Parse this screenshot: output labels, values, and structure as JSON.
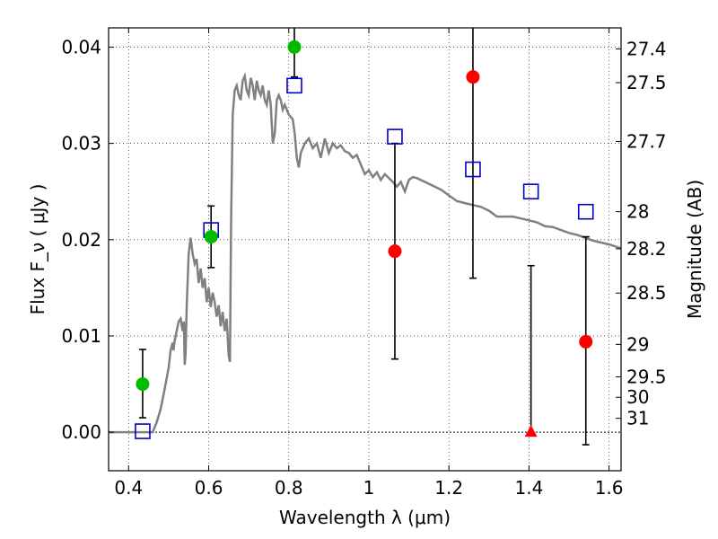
{
  "chart_data": {
    "type": "scatter",
    "xlabel": "Wavelength  λ (μm)",
    "ylabel": "Flux  F_ν  ( μJy )",
    "y2label": "Magnitude (AB)",
    "xlim": [
      0.35,
      1.63
    ],
    "ylim": [
      -0.004,
      0.042
    ],
    "grid": true,
    "x_ticks": [
      {
        "value": 0.4,
        "label": "0.4"
      },
      {
        "value": 0.6,
        "label": "0.6"
      },
      {
        "value": 0.8,
        "label": "0.8"
      },
      {
        "value": 1.0,
        "label": "1"
      },
      {
        "value": 1.2,
        "label": "1.2"
      },
      {
        "value": 1.4,
        "label": "1.4"
      },
      {
        "value": 1.6,
        "label": "1.6"
      }
    ],
    "y_ticks": [
      {
        "value": 0.0,
        "label": "0.00"
      },
      {
        "value": 0.01,
        "label": "0.01"
      },
      {
        "value": 0.02,
        "label": "0.02"
      },
      {
        "value": 0.03,
        "label": "0.03"
      },
      {
        "value": 0.04,
        "label": "0.04"
      }
    ],
    "magnitude_ticks": [
      {
        "mag": 27.4,
        "label": "27.4"
      },
      {
        "mag": 27.5,
        "label": "27.5"
      },
      {
        "mag": 27.7,
        "label": "27.7"
      },
      {
        "mag": 28.0,
        "label": "28"
      },
      {
        "mag": 28.2,
        "label": "28.2"
      },
      {
        "mag": 28.5,
        "label": "28.5"
      },
      {
        "mag": 29.0,
        "label": "29"
      },
      {
        "mag": 29.5,
        "label": "29.5"
      },
      {
        "mag": 30.0,
        "label": "30"
      },
      {
        "mag": 31.0,
        "label": "31"
      }
    ],
    "colors": {
      "detection": "#00bb00",
      "upper_limit": "#ff0000",
      "model": "#0000cc",
      "spectrum": "#808080",
      "errorbar": "#000000"
    },
    "detections": [
      {
        "x": 0.435,
        "y": 0.005,
        "err_low": 0.0035,
        "err_high": 0.0036
      },
      {
        "x": 0.606,
        "y": 0.0203,
        "err_low": 0.0032,
        "err_high": 0.0032
      },
      {
        "x": 0.814,
        "y": 0.04,
        "err_low": 0.0031,
        "err_high": 0.0035
      }
    ],
    "low_significance": [
      {
        "x": 1.065,
        "y": 0.0188,
        "err_low": 0.0112,
        "err_high": 0.0112
      },
      {
        "x": 1.26,
        "y": 0.0369,
        "err_low": 0.0209,
        "err_high": 0.008
      },
      {
        "x": 1.542,
        "y": 0.0094,
        "err_low": 0.0107,
        "err_high": 0.0109
      }
    ],
    "nondetections": [
      {
        "x": 1.405,
        "y": 0.0,
        "err_low": 0.0,
        "err_high": 0.0173
      }
    ],
    "model_points": [
      {
        "x": 0.435,
        "y": 0.0001
      },
      {
        "x": 0.606,
        "y": 0.021
      },
      {
        "x": 0.814,
        "y": 0.036
      },
      {
        "x": 1.065,
        "y": 0.0307
      },
      {
        "x": 1.26,
        "y": 0.0273
      },
      {
        "x": 1.405,
        "y": 0.025
      },
      {
        "x": 1.542,
        "y": 0.0229
      }
    ],
    "spectrum": [
      [
        0.35,
        0.0
      ],
      [
        0.46,
        0.0
      ],
      [
        0.47,
        0.001
      ],
      [
        0.48,
        0.0024
      ],
      [
        0.49,
        0.0045
      ],
      [
        0.5,
        0.0067
      ],
      [
        0.505,
        0.0085
      ],
      [
        0.51,
        0.0093
      ],
      [
        0.512,
        0.0085
      ],
      [
        0.515,
        0.0095
      ],
      [
        0.52,
        0.0105
      ],
      [
        0.525,
        0.0115
      ],
      [
        0.53,
        0.0118
      ],
      [
        0.535,
        0.0105
      ],
      [
        0.538,
        0.0115
      ],
      [
        0.54,
        0.007
      ],
      [
        0.542,
        0.008
      ],
      [
        0.545,
        0.013
      ],
      [
        0.55,
        0.0185
      ],
      [
        0.555,
        0.0202
      ],
      [
        0.56,
        0.0185
      ],
      [
        0.565,
        0.0175
      ],
      [
        0.57,
        0.018
      ],
      [
        0.575,
        0.0155
      ],
      [
        0.58,
        0.017
      ],
      [
        0.585,
        0.015
      ],
      [
        0.59,
        0.016
      ],
      [
        0.595,
        0.0135
      ],
      [
        0.6,
        0.015
      ],
      [
        0.605,
        0.013
      ],
      [
        0.61,
        0.0145
      ],
      [
        0.615,
        0.0135
      ],
      [
        0.62,
        0.012
      ],
      [
        0.625,
        0.0132
      ],
      [
        0.63,
        0.011
      ],
      [
        0.635,
        0.0125
      ],
      [
        0.64,
        0.0105
      ],
      [
        0.645,
        0.0118
      ],
      [
        0.65,
        0.008
      ],
      [
        0.653,
        0.0073
      ],
      [
        0.656,
        0.022
      ],
      [
        0.66,
        0.033
      ],
      [
        0.665,
        0.0355
      ],
      [
        0.67,
        0.036
      ],
      [
        0.675,
        0.035
      ],
      [
        0.68,
        0.0345
      ],
      [
        0.685,
        0.0365
      ],
      [
        0.69,
        0.037
      ],
      [
        0.695,
        0.0355
      ],
      [
        0.7,
        0.035
      ],
      [
        0.705,
        0.0368
      ],
      [
        0.71,
        0.036
      ],
      [
        0.715,
        0.0345
      ],
      [
        0.72,
        0.0365
      ],
      [
        0.725,
        0.0355
      ],
      [
        0.73,
        0.035
      ],
      [
        0.735,
        0.036
      ],
      [
        0.74,
        0.0345
      ],
      [
        0.745,
        0.034
      ],
      [
        0.75,
        0.0355
      ],
      [
        0.755,
        0.034
      ],
      [
        0.76,
        0.03
      ],
      [
        0.765,
        0.031
      ],
      [
        0.77,
        0.0345
      ],
      [
        0.775,
        0.035
      ],
      [
        0.78,
        0.0345
      ],
      [
        0.785,
        0.0335
      ],
      [
        0.79,
        0.034
      ],
      [
        0.8,
        0.033
      ],
      [
        0.81,
        0.0325
      ],
      [
        0.815,
        0.031
      ],
      [
        0.82,
        0.0285
      ],
      [
        0.825,
        0.0275
      ],
      [
        0.83,
        0.029
      ],
      [
        0.84,
        0.03
      ],
      [
        0.85,
        0.0305
      ],
      [
        0.86,
        0.0295
      ],
      [
        0.87,
        0.03
      ],
      [
        0.88,
        0.0285
      ],
      [
        0.89,
        0.0305
      ],
      [
        0.9,
        0.029
      ],
      [
        0.91,
        0.03
      ],
      [
        0.92,
        0.0295
      ],
      [
        0.93,
        0.0298
      ],
      [
        0.94,
        0.0292
      ],
      [
        0.95,
        0.029
      ],
      [
        0.96,
        0.0285
      ],
      [
        0.97,
        0.0288
      ],
      [
        0.98,
        0.0278
      ],
      [
        0.99,
        0.0268
      ],
      [
        1.0,
        0.0272
      ],
      [
        1.01,
        0.0265
      ],
      [
        1.02,
        0.027
      ],
      [
        1.03,
        0.0262
      ],
      [
        1.04,
        0.0268
      ],
      [
        1.06,
        0.026
      ],
      [
        1.07,
        0.0255
      ],
      [
        1.08,
        0.026
      ],
      [
        1.09,
        0.025
      ],
      [
        1.1,
        0.0262
      ],
      [
        1.11,
        0.0265
      ],
      [
        1.12,
        0.0264
      ],
      [
        1.14,
        0.026
      ],
      [
        1.16,
        0.0256
      ],
      [
        1.18,
        0.0252
      ],
      [
        1.2,
        0.0246
      ],
      [
        1.22,
        0.024
      ],
      [
        1.24,
        0.0238
      ],
      [
        1.26,
        0.0236
      ],
      [
        1.28,
        0.0234
      ],
      [
        1.3,
        0.023
      ],
      [
        1.32,
        0.0224
      ],
      [
        1.34,
        0.0224
      ],
      [
        1.36,
        0.0224
      ],
      [
        1.38,
        0.0222
      ],
      [
        1.4,
        0.022
      ],
      [
        1.42,
        0.0218
      ],
      [
        1.44,
        0.0214
      ],
      [
        1.46,
        0.0213
      ],
      [
        1.48,
        0.021
      ],
      [
        1.5,
        0.0207
      ],
      [
        1.52,
        0.0205
      ],
      [
        1.54,
        0.0202
      ],
      [
        1.56,
        0.0199
      ],
      [
        1.58,
        0.0197
      ],
      [
        1.6,
        0.0195
      ],
      [
        1.63,
        0.0191
      ]
    ]
  }
}
